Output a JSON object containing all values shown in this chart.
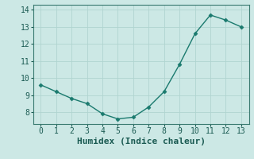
{
  "x": [
    0,
    1,
    2,
    3,
    4,
    5,
    6,
    7,
    8,
    9,
    10,
    11,
    12,
    13
  ],
  "y": [
    9.6,
    9.2,
    8.8,
    8.5,
    7.9,
    7.6,
    7.7,
    8.3,
    9.2,
    10.8,
    12.6,
    13.7,
    13.4,
    13.0
  ],
  "xlabel": "Humidex (Indice chaleur)",
  "xlim": [
    -0.5,
    13.5
  ],
  "ylim": [
    7.3,
    14.3
  ],
  "yticks": [
    8,
    9,
    10,
    11,
    12,
    13,
    14
  ],
  "xticks": [
    0,
    1,
    2,
    3,
    4,
    5,
    6,
    7,
    8,
    9,
    10,
    11,
    12,
    13
  ],
  "line_color": "#1a7a6e",
  "marker": "D",
  "marker_size": 2.5,
  "bg_color": "#cce8e5",
  "grid_color_major": "#b0d4d0",
  "grid_color_minor": "#c8e4e0",
  "axis_color": "#3a7a70",
  "label_color": "#1a5a52",
  "tick_fontsize": 7,
  "xlabel_fontsize": 8
}
